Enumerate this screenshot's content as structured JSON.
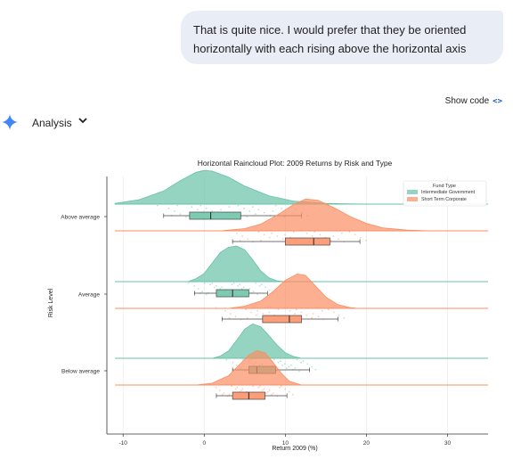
{
  "chat": {
    "user_message": "That is quite nice. I would prefer that they be oriented horizontally with each rising above the horizontal axis"
  },
  "toolbar": {
    "show_code_label": "Show code",
    "code_icon_glyph": "<>"
  },
  "analysis": {
    "label": "Analysis",
    "chevron": "⌄",
    "icon": "gemini-spark-icon"
  },
  "colors": {
    "intermediate_government": "#66c2a5",
    "short_term_corporate": "#fc8d62",
    "spark": "#4285f4"
  },
  "chart_data": {
    "type": "raincloud",
    "orientation": "horizontal",
    "title": "Horizontal Raincloud Plot: 2009 Returns by Risk and Type",
    "xlabel": "Return 2009 (%)",
    "ylabel": "Risk Level",
    "xlim": [
      -12,
      35
    ],
    "xticks": [
      -10,
      0,
      10,
      20,
      30
    ],
    "grid": "vertical",
    "legend": {
      "title": "Fund Type",
      "placement": "top-right",
      "entries": [
        "Intermediate Government",
        "Short Term Corporate"
      ]
    },
    "categories": [
      "Above average",
      "Average",
      "Below average"
    ],
    "series": [
      {
        "name": "Intermediate Government",
        "color": "#66c2a5",
        "groups": [
          {
            "category": "Above average",
            "density": [
              [
                -11,
                0.02
              ],
              [
                -8,
                0.12
              ],
              [
                -5,
                0.35
              ],
              [
                -3,
                0.62
              ],
              [
                -1,
                0.85
              ],
              [
                0,
                0.9
              ],
              [
                1,
                0.88
              ],
              [
                3,
                0.72
              ],
              [
                5,
                0.48
              ],
              [
                8,
                0.22
              ],
              [
                11,
                0.08
              ],
              [
                15,
                0.02
              ],
              [
                20,
                0.0
              ]
            ],
            "box": {
              "whisker_low": -5,
              "q1": -1.8,
              "median": 0.8,
              "q3": 4.5,
              "whisker_high": 12
            }
          },
          {
            "category": "Average",
            "density": [
              [
                -2,
                0.0
              ],
              [
                -1,
                0.08
              ],
              [
                0,
                0.22
              ],
              [
                1,
                0.5
              ],
              [
                2,
                0.78
              ],
              [
                3,
                0.92
              ],
              [
                4,
                0.95
              ],
              [
                5,
                0.85
              ],
              [
                6,
                0.58
              ],
              [
                7,
                0.28
              ],
              [
                8,
                0.1
              ],
              [
                9,
                0.02
              ],
              [
                10,
                0.0
              ]
            ],
            "box": {
              "whisker_low": -1.2,
              "q1": 1.5,
              "median": 3.5,
              "q3": 5.5,
              "whisker_high": 7.8
            }
          },
          {
            "category": "Below average",
            "density": [
              [
                1,
                0.0
              ],
              [
                2,
                0.06
              ],
              [
                3,
                0.2
              ],
              [
                4,
                0.48
              ],
              [
                5,
                0.78
              ],
              [
                6,
                0.92
              ],
              [
                7,
                0.84
              ],
              [
                8,
                0.6
              ],
              [
                9,
                0.35
              ],
              [
                10,
                0.15
              ],
              [
                11,
                0.05
              ],
              [
                12,
                0.0
              ]
            ],
            "box": {
              "whisker_low": 3.5,
              "q1": 5.5,
              "median": 6.5,
              "q3": 8.8,
              "whisker_high": 13
            }
          }
        ]
      },
      {
        "name": "Short Term Corporate",
        "color": "#fc8d62",
        "groups": [
          {
            "category": "Above average",
            "density": [
              [
                2,
                0.0
              ],
              [
                5,
                0.06
              ],
              [
                7,
                0.18
              ],
              [
                9,
                0.42
              ],
              [
                11,
                0.7
              ],
              [
                12.5,
                0.85
              ],
              [
                14,
                0.82
              ],
              [
                16,
                0.62
              ],
              [
                18,
                0.38
              ],
              [
                20,
                0.2
              ],
              [
                22,
                0.08
              ],
              [
                25,
                0.02
              ],
              [
                28,
                0.0
              ]
            ],
            "box": {
              "whisker_low": 3.5,
              "q1": 10,
              "median": 13.5,
              "q3": 15.5,
              "whisker_high": 19.2
            }
          },
          {
            "category": "Average",
            "density": [
              [
                3,
                0.0
              ],
              [
                5,
                0.06
              ],
              [
                7,
                0.2
              ],
              [
                8.5,
                0.45
              ],
              [
                10,
                0.75
              ],
              [
                11.5,
                0.92
              ],
              [
                12.5,
                0.88
              ],
              [
                13.5,
                0.65
              ],
              [
                15,
                0.3
              ],
              [
                16.5,
                0.1
              ],
              [
                18,
                0.02
              ],
              [
                19,
                0.0
              ]
            ],
            "box": {
              "whisker_low": 2.2,
              "q1": 7.2,
              "median": 10.5,
              "q3": 12,
              "whisker_high": 16.5
            }
          },
          {
            "category": "Below average",
            "density": [
              [
                -1,
                0.0
              ],
              [
                1,
                0.05
              ],
              [
                3,
                0.25
              ],
              [
                4.5,
                0.58
              ],
              [
                5.5,
                0.8
              ],
              [
                6.5,
                0.92
              ],
              [
                7.5,
                0.86
              ],
              [
                8.5,
                0.6
              ],
              [
                9.5,
                0.32
              ],
              [
                10.5,
                0.1
              ],
              [
                12,
                0.0
              ]
            ],
            "box": {
              "whisker_low": 1.5,
              "q1": 3.5,
              "median": 5.5,
              "q3": 7.5,
              "whisker_high": 10.2
            }
          }
        ]
      }
    ]
  }
}
